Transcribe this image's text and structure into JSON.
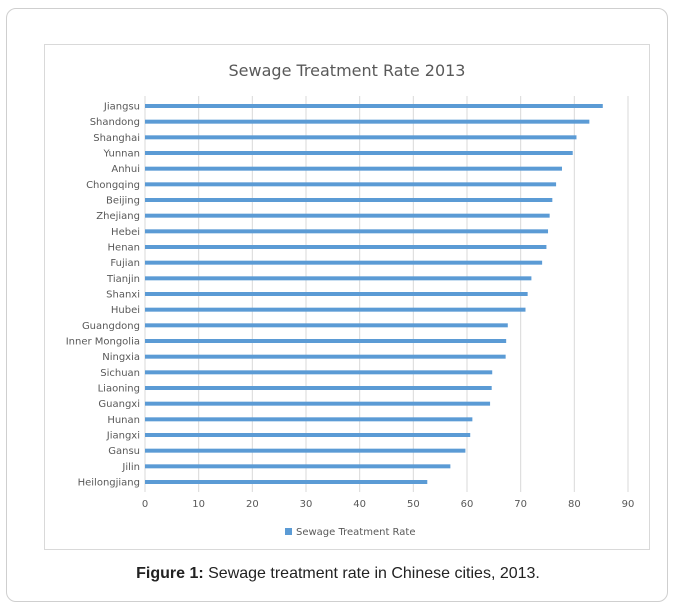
{
  "figure": {
    "caption_label": "Figure 1:",
    "caption_text": " Sewage treatment rate in Chinese cities, 2013."
  },
  "chart_data": {
    "type": "bar",
    "orientation": "horizontal",
    "title": "Sewage Treatment Rate 2013",
    "xlabel": "",
    "ylabel": "",
    "xlim": [
      0,
      90
    ],
    "x_ticks": [
      0,
      10,
      20,
      30,
      40,
      50,
      60,
      70,
      80,
      90
    ],
    "grid": "vertical",
    "legend_position": "bottom",
    "bar_color": "#5b9bd5",
    "series": [
      {
        "name": "Sewage Treatment Rate",
        "values": [
          85.3,
          82.8,
          80.4,
          79.7,
          77.7,
          76.6,
          75.9,
          75.4,
          75.1,
          74.8,
          74.0,
          72.0,
          71.3,
          70.9,
          67.6,
          67.3,
          67.2,
          64.7,
          64.6,
          64.3,
          61.0,
          60.6,
          59.7,
          56.9,
          52.6
        ]
      }
    ],
    "categories": [
      "Jiangsu",
      "Shandong",
      "Shanghai",
      "Yunnan",
      "Anhui",
      "Chongqing",
      "Beijing",
      "Zhejiang",
      "Hebei",
      "Henan",
      "Fujian",
      "Tianjin",
      "Shanxi",
      "Hubei",
      "Guangdong",
      "Inner Mongolia",
      "Ningxia",
      "Sichuan",
      "Liaoning",
      "Guangxi",
      "Hunan",
      "Jiangxi",
      "Gansu",
      "Jilin",
      "Heilongjiang"
    ]
  }
}
